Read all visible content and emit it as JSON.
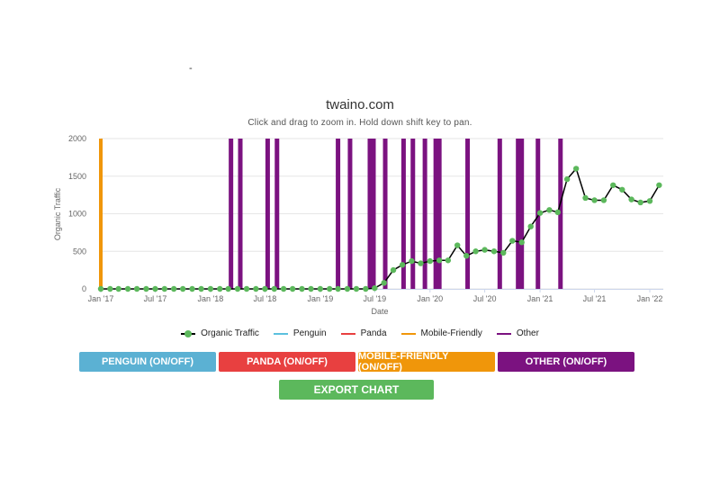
{
  "header": {
    "dash": "-"
  },
  "chart_data": {
    "type": "line",
    "title": "twaino.com",
    "subtitle": "Click and drag to zoom in. Hold down shift key to pan.",
    "xlabel": "Date",
    "ylabel": "Organic Traffic",
    "ylim": [
      0,
      2000
    ],
    "yticks": [
      0,
      500,
      1000,
      1500,
      2000
    ],
    "xlim": [
      "2017-01-01",
      "2022-01-01"
    ],
    "xtick_labels": [
      "Jan '17",
      "Jul '17",
      "Jan '18",
      "Jul '18",
      "Jan '19",
      "Jul '19",
      "Jan '20",
      "Jul '20",
      "Jan '21",
      "Jul '21",
      "Jan '22"
    ],
    "grid": true,
    "legend_position": "bottom",
    "series": [
      {
        "name": "Organic Traffic",
        "color": "#000000",
        "marker_color": "#5cb85c",
        "values": [
          [
            "2017-01-01",
            0
          ],
          [
            "2017-02-01",
            0
          ],
          [
            "2017-03-01",
            0
          ],
          [
            "2017-04-01",
            0
          ],
          [
            "2017-05-01",
            0
          ],
          [
            "2017-06-01",
            0
          ],
          [
            "2017-07-01",
            0
          ],
          [
            "2017-08-01",
            0
          ],
          [
            "2017-09-01",
            0
          ],
          [
            "2017-10-01",
            0
          ],
          [
            "2017-11-01",
            0
          ],
          [
            "2017-12-01",
            0
          ],
          [
            "2018-01-01",
            0
          ],
          [
            "2018-02-01",
            0
          ],
          [
            "2018-03-01",
            0
          ],
          [
            "2018-04-01",
            0
          ],
          [
            "2018-05-01",
            0
          ],
          [
            "2018-06-01",
            0
          ],
          [
            "2018-07-01",
            0
          ],
          [
            "2018-08-01",
            0
          ],
          [
            "2018-09-01",
            0
          ],
          [
            "2018-10-01",
            0
          ],
          [
            "2018-11-01",
            0
          ],
          [
            "2018-12-01",
            0
          ],
          [
            "2019-01-01",
            0
          ],
          [
            "2019-02-01",
            0
          ],
          [
            "2019-03-01",
            0
          ],
          [
            "2019-04-01",
            0
          ],
          [
            "2019-05-01",
            0
          ],
          [
            "2019-06-01",
            0
          ],
          [
            "2019-07-01",
            10
          ],
          [
            "2019-08-01",
            80
          ],
          [
            "2019-09-01",
            250
          ],
          [
            "2019-10-01",
            320
          ],
          [
            "2019-11-01",
            370
          ],
          [
            "2019-12-01",
            340
          ],
          [
            "2020-01-01",
            370
          ],
          [
            "2020-02-01",
            380
          ],
          [
            "2020-03-01",
            380
          ],
          [
            "2020-04-01",
            580
          ],
          [
            "2020-05-01",
            440
          ],
          [
            "2020-06-01",
            500
          ],
          [
            "2020-07-01",
            520
          ],
          [
            "2020-08-01",
            500
          ],
          [
            "2020-09-01",
            480
          ],
          [
            "2020-10-01",
            640
          ],
          [
            "2020-11-01",
            620
          ],
          [
            "2020-12-01",
            830
          ],
          [
            "2021-01-01",
            1010
          ],
          [
            "2021-02-01",
            1050
          ],
          [
            "2021-03-01",
            1020
          ],
          [
            "2021-04-01",
            1460
          ],
          [
            "2021-05-01",
            1600
          ],
          [
            "2021-06-01",
            1210
          ],
          [
            "2021-07-01",
            1180
          ],
          [
            "2021-08-01",
            1180
          ],
          [
            "2021-09-01",
            1380
          ],
          [
            "2021-10-01",
            1320
          ],
          [
            "2021-11-01",
            1190
          ],
          [
            "2021-12-01",
            1150
          ],
          [
            "2022-01-01",
            1170
          ],
          [
            "2022-02-01",
            1380
          ]
        ]
      },
      {
        "name": "Penguin",
        "color": "#5bc0de",
        "values": []
      },
      {
        "name": "Panda",
        "color": "#e84040",
        "values": []
      },
      {
        "name": "Mobile-Friendly",
        "color": "#f0960a",
        "values": [
          "2017-01-01"
        ]
      },
      {
        "name": "Other",
        "color": "#7b1280",
        "values": [
          "2018-03-10",
          "2018-04-10",
          "2018-07-10",
          "2018-08-10",
          "2019-03-01",
          "2019-04-10",
          "2019-06-15",
          "2019-06-27",
          "2019-08-05",
          "2019-10-05",
          "2019-11-05",
          "2019-12-15",
          "2020-01-20",
          "2020-02-01",
          "2020-05-05",
          "2020-08-20",
          "2020-10-20",
          "2020-11-01",
          "2020-12-25",
          "2021-03-10"
        ]
      }
    ]
  },
  "legend": {
    "items": [
      {
        "label": "Organic Traffic",
        "color": "#5cb85c",
        "marker": "dot",
        "line_color": "#000000"
      },
      {
        "label": "Penguin",
        "color": "#5bc0de",
        "marker": "line"
      },
      {
        "label": "Panda",
        "color": "#e84040",
        "marker": "line"
      },
      {
        "label": "Mobile-Friendly",
        "color": "#f0960a",
        "marker": "line"
      },
      {
        "label": "Other",
        "color": "#7b1280",
        "marker": "line"
      }
    ]
  },
  "buttons": {
    "penguin": {
      "label": "PENGUIN (ON/OFF)",
      "color": "#5bb1d3"
    },
    "panda": {
      "label": "PANDA (ON/OFF)",
      "color": "#e84040"
    },
    "mobile": {
      "label": "MOBILE-FRIENDLY (ON/OFF)",
      "color": "#f0960a"
    },
    "other": {
      "label": "OTHER (ON/OFF)",
      "color": "#7b1280"
    },
    "export": {
      "label": "EXPORT CHART",
      "color": "#5cb85c"
    }
  }
}
